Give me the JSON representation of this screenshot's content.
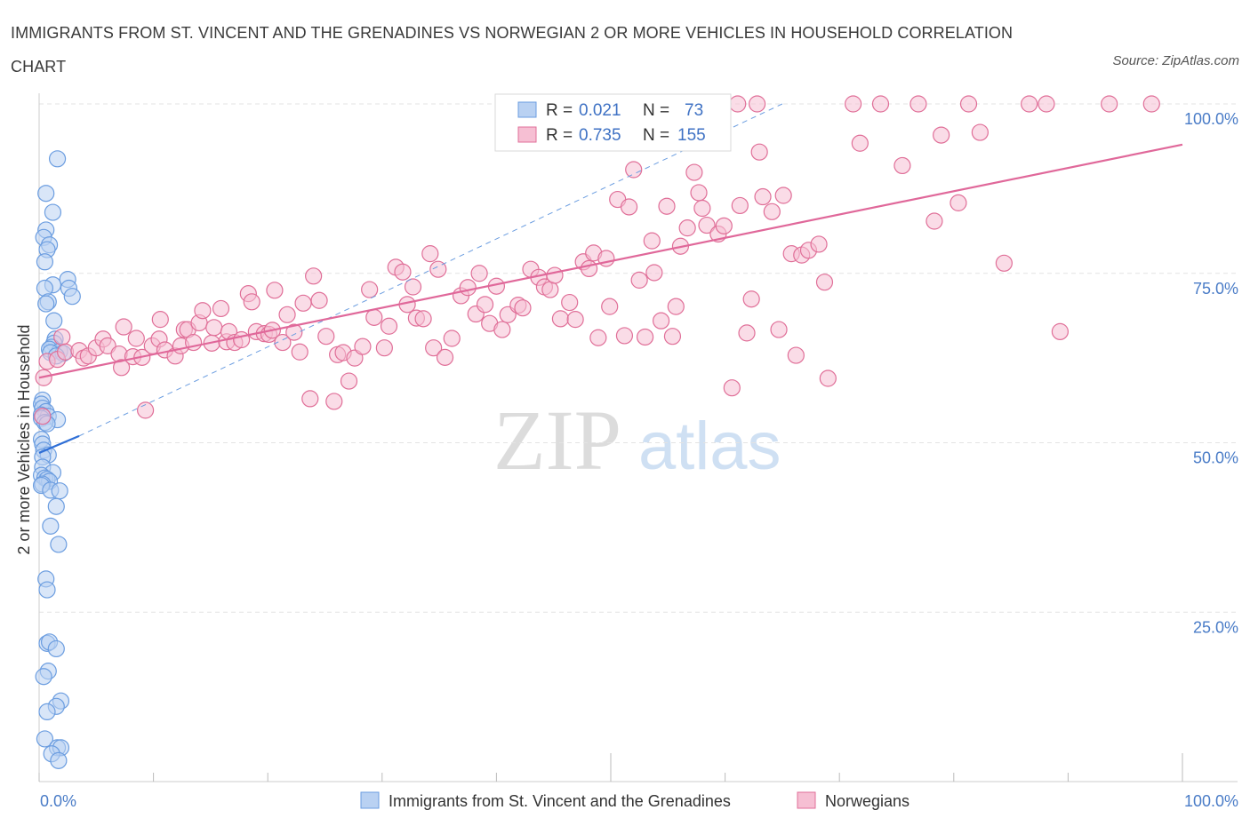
{
  "title": "IMMIGRANTS FROM ST. VINCENT AND THE GRENADINES VS NORWEGIAN 2 OR MORE VEHICLES IN HOUSEHOLD CORRELATION CHART",
  "source": "Source: ZipAtlas.com",
  "watermark": {
    "zip": "ZIP",
    "atlas": "atlas"
  },
  "chart_data": {
    "type": "scatter",
    "xlabel": "",
    "ylabel": "2 or more Vehicles in Household",
    "xlim": [
      0,
      100
    ],
    "ylim": [
      0,
      100
    ],
    "x_tick_labels": [
      "0.0%",
      "100.0%"
    ],
    "y_ticks": [
      25,
      50,
      75,
      100
    ],
    "y_tick_labels": [
      "25.0%",
      "50.0%",
      "75.0%",
      "100.0%"
    ],
    "grid": true,
    "legend": {
      "placement": "top-center",
      "entries": [
        {
          "r_label": "R =",
          "r_value": "0.021",
          "n_label": "N =",
          "n_value": "73"
        },
        {
          "r_label": "R =",
          "r_value": "0.735",
          "n_label": "N =",
          "n_value": "155"
        }
      ]
    },
    "series": [
      {
        "name": "Immigrants from St. Vincent and the Grenadines",
        "color": "#6b9de0",
        "fill": "#b9d1f2",
        "trend": {
          "x": [
            0,
            3.5
          ],
          "y": [
            48.5,
            51.0
          ],
          "dashed_extension_to": [
            65,
            100
          ]
        },
        "points": [
          [
            1.6,
            91.9
          ],
          [
            0.6,
            86.8
          ],
          [
            1.2,
            84.0
          ],
          [
            0.6,
            81.4
          ],
          [
            0.4,
            80.3
          ],
          [
            0.9,
            79.2
          ],
          [
            0.7,
            78.5
          ],
          [
            0.5,
            76.7
          ],
          [
            2.5,
            74.1
          ],
          [
            1.2,
            73.3
          ],
          [
            0.5,
            72.8
          ],
          [
            2.6,
            72.8
          ],
          [
            2.9,
            71.6
          ],
          [
            0.8,
            70.8
          ],
          [
            0.6,
            70.5
          ],
          [
            1.3,
            68.0
          ],
          [
            1.4,
            65.3
          ],
          [
            1.3,
            64.7
          ],
          [
            1.1,
            64.1
          ],
          [
            0.9,
            63.8
          ],
          [
            1.8,
            63.5
          ],
          [
            1.0,
            63.3
          ],
          [
            2.1,
            63.2
          ],
          [
            1.5,
            62.8
          ],
          [
            0.3,
            56.3
          ],
          [
            0.2,
            55.7
          ],
          [
            0.3,
            55.1
          ],
          [
            0.6,
            54.6
          ],
          [
            0.2,
            54.1
          ],
          [
            0.8,
            53.9
          ],
          [
            1.6,
            53.4
          ],
          [
            0.2,
            53.6
          ],
          [
            0.5,
            53.0
          ],
          [
            0.7,
            52.8
          ],
          [
            0.2,
            50.5
          ],
          [
            0.3,
            49.8
          ],
          [
            0.4,
            48.9
          ],
          [
            0.8,
            48.2
          ],
          [
            0.3,
            47.9
          ],
          [
            0.3,
            46.4
          ],
          [
            1.2,
            45.6
          ],
          [
            0.2,
            45.2
          ],
          [
            0.5,
            44.8
          ],
          [
            0.7,
            44.6
          ],
          [
            0.9,
            44.3
          ],
          [
            0.3,
            43.9
          ],
          [
            0.2,
            43.7
          ],
          [
            1.0,
            43.0
          ],
          [
            1.8,
            42.9
          ],
          [
            1.5,
            40.6
          ],
          [
            1.0,
            37.7
          ],
          [
            1.7,
            35.0
          ],
          [
            0.6,
            29.9
          ],
          [
            0.7,
            28.3
          ],
          [
            0.7,
            20.4
          ],
          [
            0.9,
            20.6
          ],
          [
            1.5,
            19.6
          ],
          [
            0.8,
            16.3
          ],
          [
            0.4,
            15.5
          ],
          [
            1.9,
            11.9
          ],
          [
            1.5,
            11.1
          ],
          [
            0.7,
            10.3
          ],
          [
            0.5,
            6.3
          ],
          [
            1.6,
            5.0
          ],
          [
            1.9,
            5.0
          ],
          [
            1.1,
            4.1
          ],
          [
            1.7,
            3.1
          ]
        ]
      },
      {
        "name": "Norwegians",
        "color": "#e06f98",
        "fill": "#f6bfd3",
        "trend": {
          "x": [
            0,
            100
          ],
          "y": [
            59.6,
            94.0
          ]
        },
        "points": [
          [
            0.4,
            59.6
          ],
          [
            0.3,
            53.9
          ],
          [
            0.7,
            62.0
          ],
          [
            1.6,
            62.3
          ],
          [
            2.0,
            65.6
          ],
          [
            2.3,
            63.4
          ],
          [
            3.5,
            63.6
          ],
          [
            3.9,
            62.5
          ],
          [
            4.3,
            62.8
          ],
          [
            5.0,
            64.0
          ],
          [
            5.6,
            65.3
          ],
          [
            6.0,
            64.3
          ],
          [
            7.0,
            63.1
          ],
          [
            7.2,
            61.1
          ],
          [
            7.4,
            67.1
          ],
          [
            8.2,
            62.7
          ],
          [
            8.5,
            65.4
          ],
          [
            9.0,
            62.6
          ],
          [
            9.3,
            54.8
          ],
          [
            9.9,
            64.3
          ],
          [
            10.5,
            65.3
          ],
          [
            10.6,
            68.2
          ],
          [
            11.0,
            63.7
          ],
          [
            11.9,
            62.8
          ],
          [
            12.4,
            64.3
          ],
          [
            12.7,
            66.7
          ],
          [
            13.0,
            66.7
          ],
          [
            13.5,
            64.8
          ],
          [
            14.0,
            67.7
          ],
          [
            14.3,
            69.5
          ],
          [
            15.1,
            64.7
          ],
          [
            15.3,
            67.0
          ],
          [
            15.9,
            69.8
          ],
          [
            16.4,
            64.9
          ],
          [
            16.6,
            66.4
          ],
          [
            17.1,
            64.8
          ],
          [
            17.7,
            65.2
          ],
          [
            18.3,
            72.0
          ],
          [
            18.6,
            70.8
          ],
          [
            19.0,
            66.4
          ],
          [
            19.7,
            66.1
          ],
          [
            20.1,
            66.0
          ],
          [
            20.4,
            66.6
          ],
          [
            20.6,
            72.5
          ],
          [
            21.3,
            64.8
          ],
          [
            21.7,
            68.9
          ],
          [
            22.3,
            66.3
          ],
          [
            22.8,
            63.4
          ],
          [
            23.1,
            70.6
          ],
          [
            23.7,
            56.5
          ],
          [
            24.0,
            74.6
          ],
          [
            24.5,
            71.0
          ],
          [
            25.1,
            65.7
          ],
          [
            25.8,
            56.1
          ],
          [
            26.1,
            63.0
          ],
          [
            26.6,
            63.3
          ],
          [
            27.1,
            59.1
          ],
          [
            27.6,
            62.5
          ],
          [
            28.3,
            64.2
          ],
          [
            28.9,
            72.6
          ],
          [
            29.3,
            68.5
          ],
          [
            30.2,
            64.0
          ],
          [
            30.6,
            67.2
          ],
          [
            31.2,
            75.9
          ],
          [
            31.8,
            75.2
          ],
          [
            32.2,
            70.4
          ],
          [
            32.7,
            73.0
          ],
          [
            33.0,
            68.4
          ],
          [
            33.6,
            68.3
          ],
          [
            34.2,
            77.9
          ],
          [
            34.5,
            64.0
          ],
          [
            34.9,
            75.6
          ],
          [
            35.5,
            62.6
          ],
          [
            36.1,
            65.4
          ],
          [
            36.9,
            71.7
          ],
          [
            37.5,
            72.9
          ],
          [
            38.2,
            69.0
          ],
          [
            38.5,
            75.0
          ],
          [
            39.0,
            70.4
          ],
          [
            39.4,
            67.6
          ],
          [
            40.0,
            73.1
          ],
          [
            40.5,
            66.7
          ],
          [
            41.0,
            68.9
          ],
          [
            41.9,
            70.3
          ],
          [
            42.3,
            69.9
          ],
          [
            43.0,
            75.6
          ],
          [
            43.7,
            74.4
          ],
          [
            44.2,
            73.0
          ],
          [
            44.7,
            72.6
          ],
          [
            45.1,
            74.7
          ],
          [
            45.6,
            68.3
          ],
          [
            46.4,
            70.7
          ],
          [
            46.9,
            68.2
          ],
          [
            47.6,
            76.7
          ],
          [
            48.1,
            75.7
          ],
          [
            48.5,
            78.0
          ],
          [
            48.9,
            65.5
          ],
          [
            49.6,
            77.2
          ],
          [
            49.9,
            70.1
          ],
          [
            50.6,
            85.9
          ],
          [
            51.2,
            65.8
          ],
          [
            51.6,
            84.8
          ],
          [
            52.0,
            90.3
          ],
          [
            52.5,
            74.0
          ],
          [
            53.0,
            65.6
          ],
          [
            53.6,
            79.8
          ],
          [
            53.8,
            75.1
          ],
          [
            54.4,
            68.0
          ],
          [
            54.9,
            84.9
          ],
          [
            55.4,
            65.7
          ],
          [
            55.7,
            70.1
          ],
          [
            56.1,
            79.0
          ],
          [
            56.7,
            81.7
          ],
          [
            57.3,
            89.9
          ],
          [
            57.7,
            86.9
          ],
          [
            58.0,
            84.6
          ],
          [
            58.4,
            82.1
          ],
          [
            59.4,
            80.8
          ],
          [
            59.9,
            82.0
          ],
          [
            60.6,
            58.1
          ],
          [
            61.1,
            100
          ],
          [
            61.3,
            85.0
          ],
          [
            61.9,
            66.2
          ],
          [
            62.3,
            71.2
          ],
          [
            62.8,
            100
          ],
          [
            63.0,
            92.9
          ],
          [
            63.3,
            86.3
          ],
          [
            64.1,
            84.1
          ],
          [
            64.7,
            66.7
          ],
          [
            65.1,
            86.5
          ],
          [
            65.8,
            77.9
          ],
          [
            66.2,
            62.9
          ],
          [
            66.7,
            77.7
          ],
          [
            67.3,
            78.4
          ],
          [
            68.2,
            79.3
          ],
          [
            68.7,
            73.7
          ],
          [
            69.0,
            59.5
          ],
          [
            71.2,
            100
          ],
          [
            71.8,
            94.2
          ],
          [
            73.6,
            100
          ],
          [
            75.5,
            90.9
          ],
          [
            76.9,
            100
          ],
          [
            78.3,
            82.7
          ],
          [
            78.9,
            95.4
          ],
          [
            80.4,
            85.4
          ],
          [
            81.3,
            100
          ],
          [
            82.3,
            95.8
          ],
          [
            84.4,
            76.5
          ],
          [
            86.6,
            100
          ],
          [
            88.1,
            100
          ],
          [
            89.3,
            66.4
          ],
          [
            93.6,
            100
          ],
          [
            97.3,
            100
          ]
        ]
      }
    ]
  },
  "bottom_legend": [
    {
      "label": "Immigrants from St. Vincent and the Grenadines"
    },
    {
      "label": "Norwegians"
    }
  ]
}
